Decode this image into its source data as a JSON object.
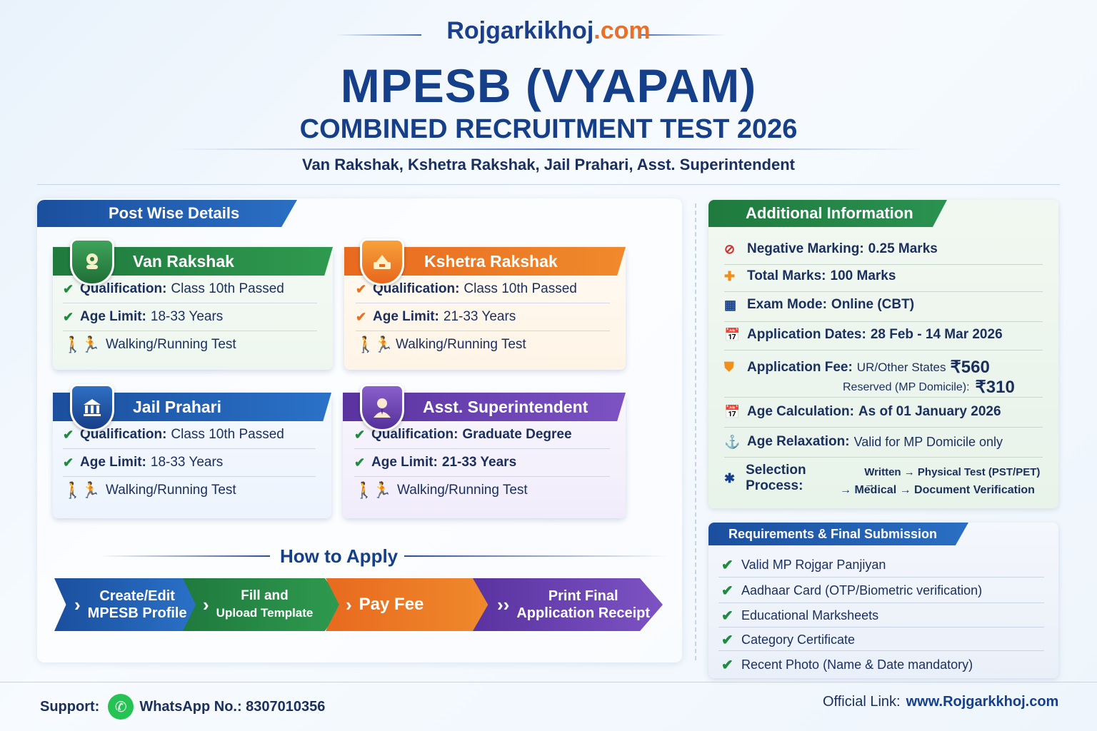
{
  "header": {
    "brand_main": "Rojgarkikhoj",
    "brand_tld": ".com",
    "title_line1": "MPESB (VYAPAM)",
    "title_line2": "COMBINED RECRUITMENT TEST 2026",
    "subtitle": "Van Rakshak, Kshetra Rakshak, Jail Prahari, Asst. Superintendent"
  },
  "post_wise": {
    "tab_label": "Post  Wise Details",
    "cards": [
      {
        "name": "Van Rakshak",
        "qual_label": "Qualification:",
        "qual_value": "Class 10th Passed",
        "age_label": "Age Limit:",
        "age_value": "18-33 Years",
        "test": "Walking/Running Test"
      },
      {
        "name": "Kshetra Rakshak",
        "qual_label": "Qualification:",
        "qual_value": "Class 10th Passed",
        "age_label": "Age Limit:",
        "age_value": "21-33 Years",
        "test": "Walking/Running Test"
      },
      {
        "name": "Jail Prahari",
        "qual_label": "Qualification:",
        "qual_value": "Class 10th Passed",
        "age_label": "Age Limit:",
        "age_value": "18-33 Years",
        "test": "Walking/Running Test"
      },
      {
        "name": "Asst. Superintendent",
        "qual_label": "Qualification:",
        "qual_value": "Graduate Degree",
        "age_label": "Age Limit:",
        "age_value": "21-33 Years",
        "test": "Walking/Running Test"
      }
    ]
  },
  "how_to_apply": {
    "title": "How to Apply",
    "steps": [
      {
        "line1": "Create/Edit",
        "line2": "MPESB Profile"
      },
      {
        "line1": "Fill and",
        "line2": "Upload Template"
      },
      {
        "line1": "Pay Fee",
        "line2": ""
      },
      {
        "line1": "Print Final",
        "line2": "Application Receipt"
      }
    ]
  },
  "additional_info": {
    "tab_label": "Additional Information",
    "negative_label": "Negative Marking:",
    "negative_value": "0.25 Marks",
    "total_label": "Total Marks:",
    "total_value": "100 Marks",
    "mode_label": "Exam Mode:",
    "mode_value": "Online (CBT)",
    "dates_label": "Application Dates:",
    "dates_value": "28 Feb - 14 Mar 2026",
    "fee_label": "Application Fee:",
    "fee_ur_label": "UR/Other States",
    "fee_ur_value": "₹560",
    "fee_res_label": "Reserved (MP Domicile):",
    "fee_res_value": "₹310",
    "agecalc_label": "Age Calculation:",
    "agecalc_value": "As of 01 January 2026",
    "relax_label": "Age Relaxation:",
    "relax_value": "Valid for MP Domicile only",
    "selection_label": "Selection Process:",
    "selection_line1": "Written → Physical Test (PST/PET) →",
    "selection_line2": "→ Medical → Document Verification"
  },
  "requirements": {
    "tab_label": "Requirements & Final Submission",
    "items": [
      "Valid MP Rojgar Panjiyan",
      "Aadhaar Card (OTP/Biometric verification)",
      "Educational Marksheets",
      "Category Certificate",
      "Recent Photo (Name & Date mandatory)"
    ]
  },
  "footer": {
    "support_label": "Support:",
    "whatsapp_text": "WhatsApp No.: 8307010356",
    "official_label": "Official Link:",
    "official_url": "www.Rojgarkkhoj.com"
  },
  "colors": {
    "navy": "#163f8a",
    "green": "#1f7a3e",
    "orange": "#e86a1f",
    "blue": "#1b4f9e",
    "purple": "#5a33a0"
  }
}
